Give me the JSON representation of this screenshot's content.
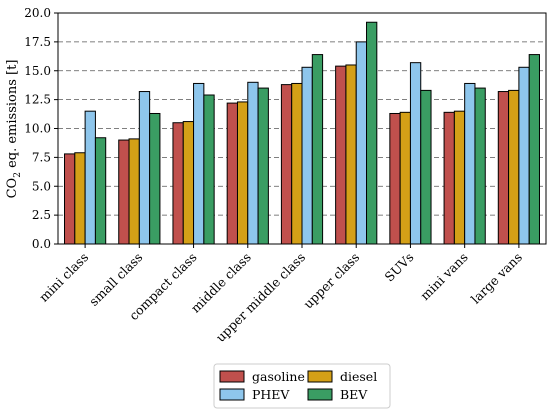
{
  "chart_data": {
    "type": "bar",
    "ylabel_parts": {
      "prefix": "CO",
      "sub": "2",
      "suffix": " eq. emissions [t]"
    },
    "xlabel": "",
    "ylim": [
      0,
      20
    ],
    "yticks": [
      "0.0",
      "2.5",
      "5.0",
      "7.5",
      "10.0",
      "12.5",
      "15.0",
      "17.5",
      "20.0"
    ],
    "grid": "horizontal-dashed",
    "legend_position": "bottom-center",
    "categories": [
      "mini class",
      "small class",
      "compact class",
      "middle class",
      "upper middle class",
      "upper class",
      "SUVs",
      "mini vans",
      "large vans"
    ],
    "series": [
      {
        "name": "gasoline",
        "color": "#c0504d",
        "values": [
          7.8,
          9.0,
          10.5,
          12.2,
          13.8,
          15.4,
          11.3,
          11.4,
          13.2
        ]
      },
      {
        "name": "diesel",
        "color": "#d4a017",
        "values": [
          7.9,
          9.1,
          10.6,
          12.3,
          13.9,
          15.5,
          11.4,
          11.5,
          13.3
        ]
      },
      {
        "name": "PHEV",
        "color": "#8ec6ec",
        "values": [
          11.5,
          13.2,
          13.9,
          14.0,
          15.3,
          17.5,
          15.7,
          13.9,
          15.3
        ]
      },
      {
        "name": "BEV",
        "color": "#3a9d63",
        "values": [
          9.2,
          11.3,
          12.9,
          13.5,
          16.4,
          19.2,
          13.3,
          13.5,
          16.4
        ]
      }
    ]
  }
}
